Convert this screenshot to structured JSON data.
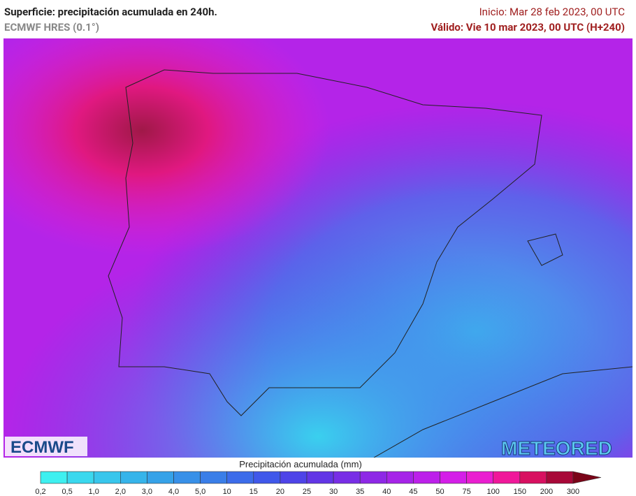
{
  "header": {
    "title": "Superficie: precipitación acumulada en 240h.",
    "subtitle": "ECMWF HRES (0.1°)",
    "start": "Inicio: Mar 28 feb 2023, 00 UTC",
    "valid": "Válido: Vie 10 mar 2023, 00 UTC (H+240)"
  },
  "logos": {
    "left": "ECMWF",
    "right": "METEORED"
  },
  "legend": {
    "title": "Precipitación acumulada (mm)",
    "labels": [
      "0,2",
      "0,5",
      "1,0",
      "2,0",
      "3,0",
      "4,0",
      "5,0",
      "10",
      "15",
      "20",
      "25",
      "30",
      "35",
      "40",
      "45",
      "50",
      "75",
      "100",
      "150",
      "200",
      "300"
    ],
    "colors": [
      "#3ef0f0",
      "#3ad8ee",
      "#38c6ec",
      "#36b4ea",
      "#36a2e8",
      "#3890e8",
      "#3a7ee8",
      "#3c6cea",
      "#4058ea",
      "#4e44e8",
      "#6236e6",
      "#782ee6",
      "#8e28e6",
      "#a624e8",
      "#bc20ea",
      "#d41ee8",
      "#ea1ed0",
      "#f0189a",
      "#d81060",
      "#a80838",
      "#7a0418"
    ]
  }
}
